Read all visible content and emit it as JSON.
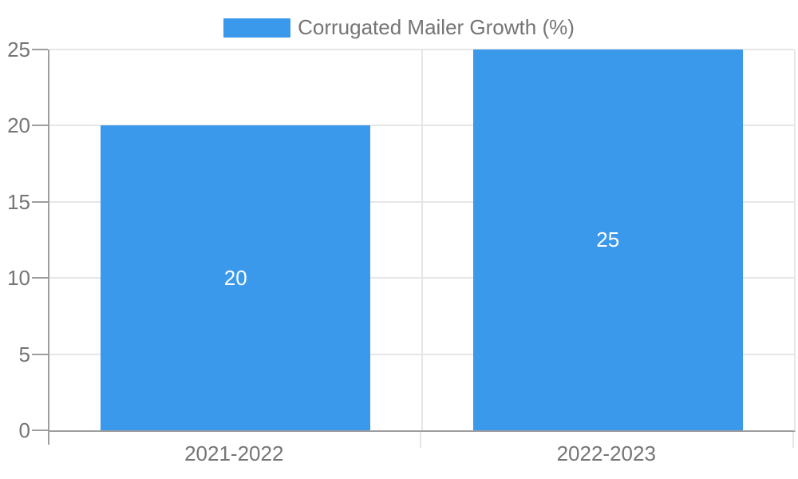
{
  "legend": {
    "label": "Corrugated Mailer Growth (%)",
    "position": "top"
  },
  "colors": {
    "bar": "#3B99EC",
    "grid": "#E6E6E6",
    "axis": "#9E9E9E",
    "text": "#757575",
    "data_label": "#FFFFFF",
    "background": "#FFFFFF"
  },
  "chart_data": {
    "type": "bar",
    "title": "",
    "xlabel": "",
    "ylabel": "",
    "categories": [
      "2021-2022",
      "2022-2023"
    ],
    "series": [
      {
        "name": "Corrugated Mailer Growth (%)",
        "values": [
          20,
          25
        ]
      }
    ],
    "data_labels": [
      "20",
      "25"
    ],
    "yticks": [
      "0",
      "5",
      "10",
      "15",
      "20",
      "25"
    ],
    "ylim": [
      0,
      25
    ],
    "grid": true,
    "legend_position": "top",
    "data_label_placement": "inside-center"
  }
}
